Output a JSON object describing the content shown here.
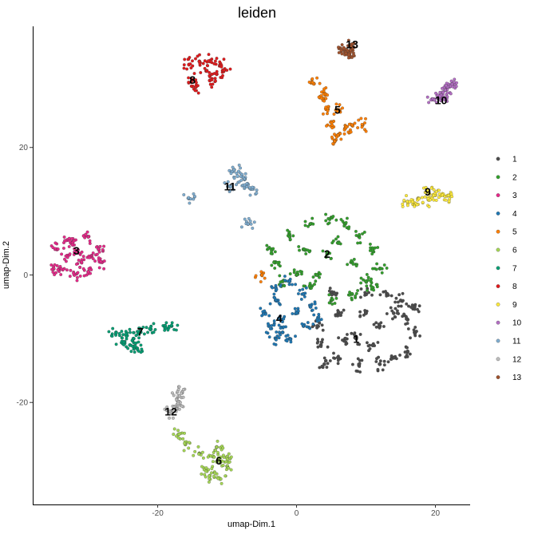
{
  "chart_data": {
    "type": "scatter",
    "title": "leiden",
    "xlabel": "umap-Dim.1",
    "ylabel": "umap-Dim.2",
    "xlim": [
      -38,
      25
    ],
    "ylim": [
      -36,
      39
    ],
    "xticks": [
      -20,
      0,
      20
    ],
    "yticks": [
      -20,
      0,
      20
    ],
    "grid": false,
    "legend_position": "right",
    "clusters": [
      {
        "name": "1",
        "color": "#4d4d4d",
        "label_pos": [
          8.6,
          -10.0
        ],
        "points": [
          [
            8.6,
            -10
          ],
          [
            6,
            -6
          ],
          [
            10,
            -6
          ],
          [
            12,
            -8
          ],
          [
            14,
            -6
          ],
          [
            15,
            -4
          ],
          [
            16,
            -7
          ],
          [
            17,
            -5
          ],
          [
            17,
            -9
          ],
          [
            16,
            -12
          ],
          [
            14,
            -13
          ],
          [
            12,
            -14
          ],
          [
            9,
            -14.2
          ],
          [
            6,
            -13
          ],
          [
            3.5,
            -11
          ],
          [
            3,
            -8
          ],
          [
            5,
            -3
          ],
          [
            10,
            -3
          ],
          [
            13,
            -3
          ],
          [
            7,
            -10
          ],
          [
            11,
            -11
          ],
          [
            4,
            -14
          ]
        ]
      },
      {
        "name": "2",
        "color": "#33a02c",
        "label_pos": [
          4.4,
          3.3
        ],
        "points": [
          [
            4.4,
            3.3
          ],
          [
            -1,
            6
          ],
          [
            2,
            8
          ],
          [
            5,
            9
          ],
          [
            7,
            8
          ],
          [
            9,
            6
          ],
          [
            11,
            4
          ],
          [
            12,
            1
          ],
          [
            11,
            -2
          ],
          [
            8,
            -3
          ],
          [
            5,
            -4
          ],
          [
            2,
            -2
          ],
          [
            0,
            0
          ],
          [
            -3,
            2
          ],
          [
            -3.5,
            4
          ],
          [
            1,
            4
          ],
          [
            6,
            5
          ],
          [
            8,
            2
          ],
          [
            3,
            0
          ],
          [
            -2,
            -1
          ],
          [
            10,
            -1
          ]
        ]
      },
      {
        "name": "3",
        "color": "#e7298a",
        "label_pos": [
          -31.7,
          3.8
        ],
        "points": [
          [
            -31.7,
            3.8
          ],
          [
            -35,
            1
          ],
          [
            -34.5,
            4
          ],
          [
            -33,
            5.5
          ],
          [
            -30,
            6
          ],
          [
            -28.5,
            4
          ],
          [
            -28,
            2
          ],
          [
            -30,
            0.5
          ],
          [
            -32,
            0
          ],
          [
            -34,
            1
          ],
          [
            -33,
            3
          ],
          [
            -31,
            2
          ],
          [
            -29.5,
            3
          ],
          [
            -32.5,
            5
          ]
        ]
      },
      {
        "name": "4",
        "color": "#1f78b4",
        "label_pos": [
          -2.5,
          -6.8
        ],
        "points": [
          [
            -2.5,
            -6.8
          ],
          [
            -3,
            -2
          ],
          [
            -1,
            -1
          ],
          [
            1,
            -3
          ],
          [
            2,
            -5
          ],
          [
            1,
            -8
          ],
          [
            -1,
            -10
          ],
          [
            -3,
            -10
          ],
          [
            -4,
            -8
          ],
          [
            -4.5,
            -6
          ],
          [
            -3,
            -4
          ],
          [
            0,
            -6
          ],
          [
            -2,
            -9
          ],
          [
            3,
            -7
          ]
        ]
      },
      {
        "name": "5",
        "color": "#ff7f00",
        "label_pos": [
          5.9,
          25.9
        ],
        "points": [
          [
            5.9,
            25.9
          ],
          [
            2.5,
            30
          ],
          [
            4,
            28.5
          ],
          [
            4.5,
            26
          ],
          [
            5,
            24
          ],
          [
            6,
            22
          ],
          [
            7,
            23
          ],
          [
            8,
            23.5
          ],
          [
            9.5,
            23.5
          ],
          [
            5.5,
            21
          ],
          [
            3.5,
            28
          ],
          [
            -5,
            0
          ]
        ]
      },
      {
        "name": "6",
        "color": "#a6d854",
        "label_pos": [
          -11.2,
          -29.1
        ],
        "points": [
          [
            -11.2,
            -29.1
          ],
          [
            -17,
            -25
          ],
          [
            -16,
            -26.5
          ],
          [
            -14,
            -28
          ],
          [
            -12,
            -28.5
          ],
          [
            -10,
            -28.5
          ],
          [
            -13,
            -30.5
          ],
          [
            -11,
            -32
          ],
          [
            -10,
            -30
          ],
          [
            -12.5,
            -31.5
          ],
          [
            -11.5,
            -27
          ]
        ]
      },
      {
        "name": "7",
        "color": "#009e73",
        "label_pos": [
          -22.5,
          -8.9
        ],
        "points": [
          [
            -22.5,
            -8.9
          ],
          [
            -25,
            -10.5
          ],
          [
            -24,
            -11
          ],
          [
            -23,
            -11.5
          ],
          [
            -24.5,
            -9.5
          ],
          [
            -21,
            -8.5
          ],
          [
            -19,
            -8
          ],
          [
            -18,
            -8
          ],
          [
            -23.5,
            -10
          ],
          [
            -26,
            -9
          ]
        ]
      },
      {
        "name": "8",
        "color": "#e31a1c",
        "label_pos": [
          -15.0,
          30.6
        ],
        "points": [
          [
            -15,
            30.6
          ],
          [
            -15.5,
            33
          ],
          [
            -14,
            33.5
          ],
          [
            -12.5,
            33.5
          ],
          [
            -11,
            33
          ],
          [
            -11.5,
            31.5
          ],
          [
            -12.5,
            30.5
          ],
          [
            -14.5,
            29.5
          ],
          [
            -13,
            32
          ],
          [
            -10.5,
            32
          ]
        ]
      },
      {
        "name": "9",
        "color": "#ffeb3b",
        "label_pos": [
          18.9,
          13.1
        ],
        "points": [
          [
            18.9,
            13.1
          ],
          [
            16,
            11.5
          ],
          [
            17.5,
            12
          ],
          [
            19,
            11.8
          ],
          [
            20,
            12.5
          ],
          [
            21,
            12.7
          ],
          [
            22,
            12.5
          ],
          [
            17,
            11
          ]
        ]
      },
      {
        "name": "10",
        "color": "#b36ec4",
        "label_pos": [
          20.8,
          27.4
        ],
        "points": [
          [
            20.8,
            27.4
          ],
          [
            19.5,
            27.5
          ],
          [
            20.5,
            28
          ],
          [
            21.5,
            29
          ],
          [
            22,
            29.5
          ],
          [
            22.5,
            30
          ],
          [
            20.8,
            28.2
          ]
        ]
      },
      {
        "name": "11",
        "color": "#7fadd0",
        "label_pos": [
          -9.6,
          13.9
        ],
        "points": [
          [
            -9.6,
            13.9
          ],
          [
            -9,
            16.5
          ],
          [
            -8.5,
            15.5
          ],
          [
            -7.5,
            15
          ],
          [
            -7,
            14.2
          ],
          [
            -6.5,
            13.5
          ],
          [
            -15.5,
            12
          ],
          [
            -7,
            8
          ]
        ]
      },
      {
        "name": "12",
        "color": "#bdbdbd",
        "label_pos": [
          -18.1,
          -21.4
        ],
        "points": [
          [
            -18.1,
            -21.4
          ],
          [
            -17,
            -19
          ],
          [
            -16.5,
            -18.5
          ],
          [
            -16.8,
            -20
          ],
          [
            -17.3,
            -21
          ]
        ]
      },
      {
        "name": "13",
        "color": "#a0522d",
        "label_pos": [
          8.0,
          36.2
        ],
        "points": [
          [
            8,
            36.2
          ],
          [
            7,
            35
          ],
          [
            7.5,
            34.5
          ],
          [
            6.8,
            35.6
          ],
          [
            7.8,
            35.2
          ]
        ]
      }
    ]
  }
}
